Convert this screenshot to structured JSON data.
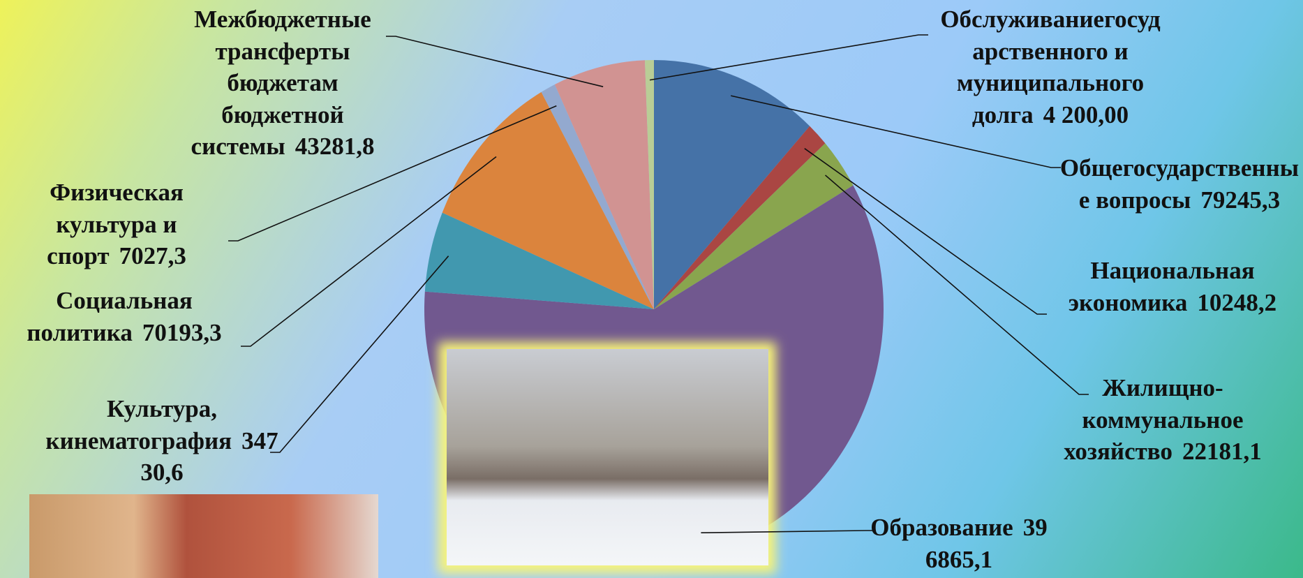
{
  "chart_data": {
    "type": "pie",
    "categories": [
      "Общегосударственные вопросы",
      "Национальная экономика",
      "Жилищно-коммунальное хозяйство",
      "Образование",
      "Культура, кинематография",
      "Социальная политика",
      "Физическая культура и спорт",
      "Межбюджетные трансферты бюджетам бюджетной системы",
      "Обслуживаниегосударственного и муниципального долга"
    ],
    "values": [
      79245.3,
      10248.2,
      22181.1,
      396865.1,
      34730.6,
      70193.3,
      7027.3,
      43281.8,
      4200
    ],
    "value_labels": [
      "79245,3",
      "10248,2",
      "22181,1",
      "396865,1",
      "34730,6",
      "70193,3",
      "7027,3",
      "43281,8",
      "4 200,00"
    ],
    "colors": [
      "#4572a7",
      "#aa4643",
      "#89a54e",
      "#71588f",
      "#4198af",
      "#db843d",
      "#93a9cf",
      "#d19392",
      "#b9cd96"
    ]
  }
}
